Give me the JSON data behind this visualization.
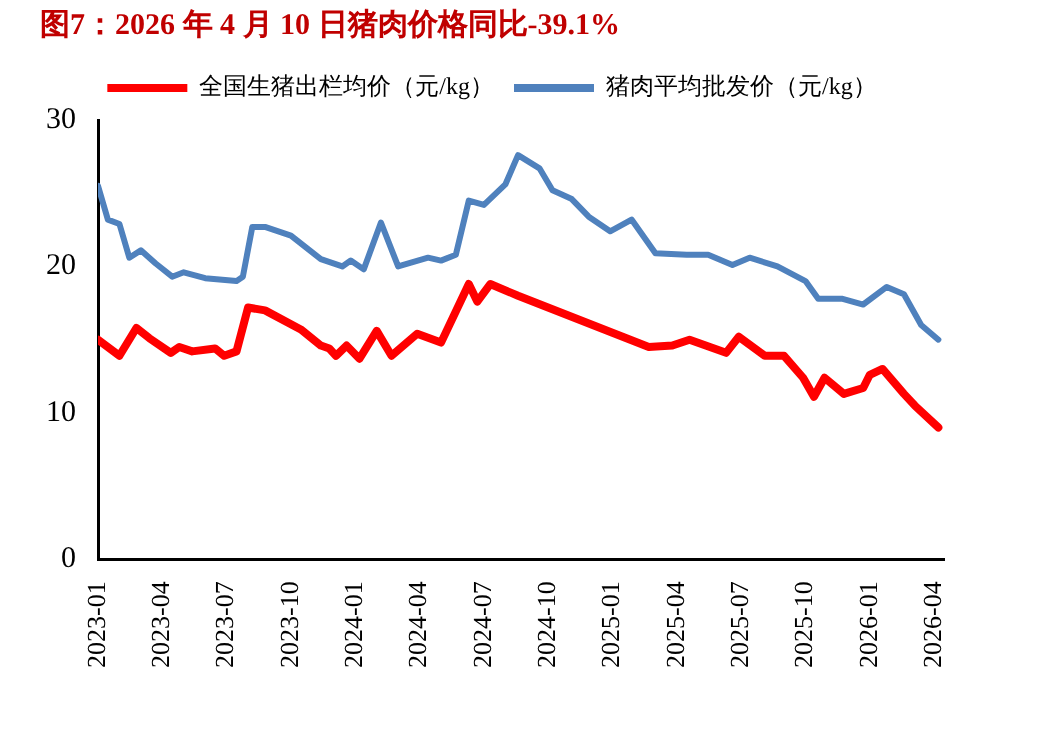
{
  "chart_data": {
    "type": "line",
    "title": "图7：2026 年 4 月 10 日猪肉价格同比-39.1%",
    "xlim": [
      "2023-01",
      "2026-04-15"
    ],
    "xticks": [
      "2023-01",
      "2023-04",
      "2023-07",
      "2023-10",
      "2024-01",
      "2024-04",
      "2024-07",
      "2024-10",
      "2025-01",
      "2025-04",
      "2025-07",
      "2025-10",
      "2026-01",
      "2026-04"
    ],
    "ylim": [
      0,
      30
    ],
    "yticks": [
      0,
      10,
      20,
      30
    ],
    "grid": false,
    "legend": "top",
    "marker": "none",
    "line_style": "solid",
    "series": [
      {
        "name": "全国生猪出栏均价（元/kg）",
        "color": "#ff0000",
        "x": [
          "2023-01-01",
          "2023-02-01",
          "2023-02-25",
          "2023-03-13",
          "2023-04-13",
          "2023-04-25",
          "2023-05-13",
          "2023-06-15",
          "2023-06-28",
          "2023-07-15",
          "2023-08-01",
          "2023-08-25",
          "2023-10-15",
          "2023-11-13",
          "2023-11-25",
          "2023-12-04",
          "2023-12-19",
          "2024-01-07",
          "2024-02-01",
          "2024-02-22",
          "2024-03-28",
          "2024-05-01",
          "2024-06-10",
          "2024-06-22",
          "2024-07-10",
          "2024-08-19",
          "2025-02-22",
          "2025-03-25",
          "2025-04-19",
          "2025-06-10",
          "2025-06-28",
          "2025-08-04",
          "2025-09-01",
          "2025-09-28",
          "2025-10-13",
          "2025-10-28",
          "2025-11-25",
          "2025-12-22",
          "2026-01-01",
          "2026-01-19",
          "2026-02-19",
          "2026-03-04",
          "2026-04-07"
        ],
        "values": [
          15.0,
          13.9,
          15.8,
          15.1,
          14.1,
          14.5,
          14.2,
          14.4,
          13.9,
          14.2,
          17.2,
          17.0,
          15.7,
          14.6,
          14.4,
          13.9,
          14.6,
          13.7,
          15.6,
          13.9,
          15.4,
          14.8,
          18.8,
          17.6,
          18.8,
          18.0,
          14.5,
          14.6,
          15.0,
          14.1,
          15.2,
          13.9,
          13.9,
          12.4,
          11.1,
          12.4,
          11.3,
          11.7,
          12.6,
          13.0,
          11.3,
          10.5,
          9.0
        ]
      },
      {
        "name": "猪肉平均批发价（元/kg）",
        "color": "#4f81bd",
        "x": [
          "2023-01-01",
          "2023-01-15",
          "2023-02-01",
          "2023-02-15",
          "2023-03-01",
          "2023-03-22",
          "2023-04-15",
          "2023-05-01",
          "2023-06-01",
          "2023-07-15",
          "2023-07-24",
          "2023-08-07",
          "2023-08-25",
          "2023-10-01",
          "2023-11-13",
          "2023-12-13",
          "2023-12-25",
          "2024-01-13",
          "2024-02-07",
          "2024-03-01",
          "2024-04-13",
          "2024-05-01",
          "2024-05-22",
          "2024-06-10",
          "2024-07-01",
          "2024-08-01",
          "2024-08-19",
          "2024-09-19",
          "2024-10-07",
          "2024-11-04",
          "2024-11-28",
          "2024-12-28",
          "2025-01-28",
          "2025-03-01",
          "2025-04-15",
          "2025-05-15",
          "2025-06-19",
          "2025-07-13",
          "2025-08-22",
          "2025-10-01",
          "2025-10-19",
          "2025-11-22",
          "2025-12-22",
          "2026-01-25",
          "2026-02-19",
          "2026-03-13",
          "2026-04-07"
        ],
        "values": [
          25.5,
          23.2,
          22.9,
          20.6,
          21.1,
          20.2,
          19.3,
          19.6,
          19.2,
          19.0,
          19.3,
          22.7,
          22.7,
          22.1,
          20.5,
          20.0,
          20.4,
          19.8,
          23.0,
          20.0,
          20.6,
          20.4,
          20.8,
          24.5,
          24.2,
          25.6,
          27.6,
          26.7,
          25.2,
          24.6,
          23.4,
          22.4,
          23.2,
          20.9,
          20.8,
          20.8,
          20.1,
          20.6,
          20.0,
          19.0,
          17.8,
          17.8,
          17.4,
          18.6,
          18.1,
          16.0,
          15.0
        ]
      }
    ]
  }
}
